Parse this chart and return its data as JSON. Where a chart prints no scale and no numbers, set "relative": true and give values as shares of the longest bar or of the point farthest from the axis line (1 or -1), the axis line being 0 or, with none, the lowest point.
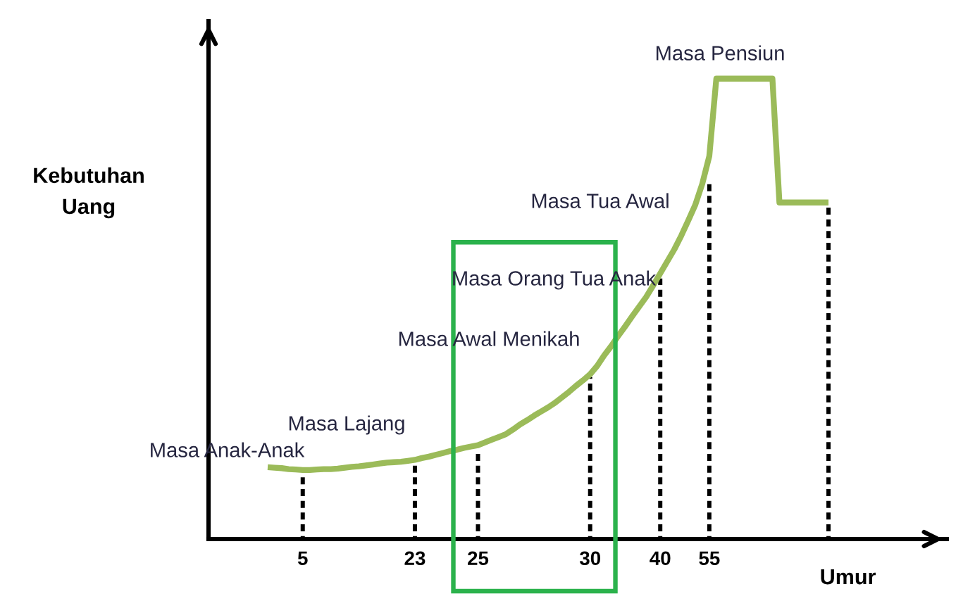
{
  "chart_data": {
    "type": "line",
    "relative": true,
    "tick_labels": "x",
    "xlabel": "Umur",
    "categories": [
      null,
      null,
      null,
      null,
      null,
      "5",
      null,
      null,
      null,
      null,
      null,
      null,
      null,
      null,
      null,
      null,
      null,
      null,
      null,
      null,
      null,
      "23",
      null,
      null,
      null,
      null,
      null,
      null,
      null,
      null,
      "25",
      null,
      null,
      null,
      null,
      null,
      null,
      null,
      null,
      null,
      null,
      null,
      null,
      null,
      null,
      null,
      "30",
      null,
      null,
      null,
      null,
      null,
      null,
      null,
      null,
      null,
      "40",
      null,
      null,
      null,
      null,
      null,
      null,
      "55",
      null,
      null,
      null,
      null,
      null,
      null,
      null,
      null,
      null,
      null,
      null,
      null,
      null,
      null,
      null,
      null,
      null
    ],
    "series": [
      {
        "color": "#9bbb59",
        "line_style": "solid",
        "marker": "none",
        "values": [
          0.156,
          0.155,
          0.154,
          0.152,
          0.151,
          0.15,
          0.15,
          0.151,
          0.152,
          0.152,
          0.153,
          0.155,
          0.157,
          0.158,
          0.16,
          0.162,
          0.164,
          0.166,
          0.167,
          0.168,
          0.17,
          0.172,
          0.176,
          0.179,
          0.183,
          0.187,
          0.191,
          0.194,
          0.198,
          0.201,
          0.204,
          0.21,
          0.216,
          0.222,
          0.228,
          0.238,
          0.249,
          0.258,
          0.268,
          0.277,
          0.286,
          0.296,
          0.308,
          0.32,
          0.333,
          0.345,
          0.358,
          0.376,
          0.399,
          0.419,
          0.441,
          0.462,
          0.484,
          0.505,
          0.526,
          0.551,
          0.577,
          0.603,
          0.629,
          0.659,
          0.692,
          0.726,
          0.772,
          0.832,
          1,
          1,
          1,
          1,
          1,
          1,
          1,
          1,
          1,
          0.731,
          0.731,
          0.731,
          0.731,
          0.731,
          0.731,
          0.731,
          0.731
        ]
      },
      {
        "type": "bar",
        "color": "#000000",
        "line_style": "dashed",
        "values": [
          null,
          null,
          null,
          null,
          null,
          0.141,
          null,
          null,
          null,
          null,
          null,
          null,
          null,
          null,
          null,
          null,
          null,
          null,
          null,
          null,
          null,
          0.162,
          null,
          null,
          null,
          null,
          null,
          null,
          null,
          null,
          0.187,
          null,
          null,
          null,
          null,
          null,
          null,
          null,
          null,
          null,
          null,
          null,
          null,
          null,
          null,
          null,
          0.352,
          null,
          null,
          null,
          null,
          null,
          null,
          null,
          null,
          null,
          0.566,
          null,
          null,
          null,
          null,
          null,
          null,
          0.78,
          null,
          null,
          null,
          null,
          null,
          null,
          null,
          null,
          null,
          null,
          null,
          null,
          null,
          null,
          null,
          null,
          0.725
        ]
      }
    ],
    "annotations": [
      "Kebutuhan\nUang",
      "Masa Anak-Anak",
      "Masa Lajang",
      "Masa Awal Menikah",
      "Masa Orang Tua Anak",
      "Masa Tua Awal",
      "Masa Pensiun"
    ]
  }
}
